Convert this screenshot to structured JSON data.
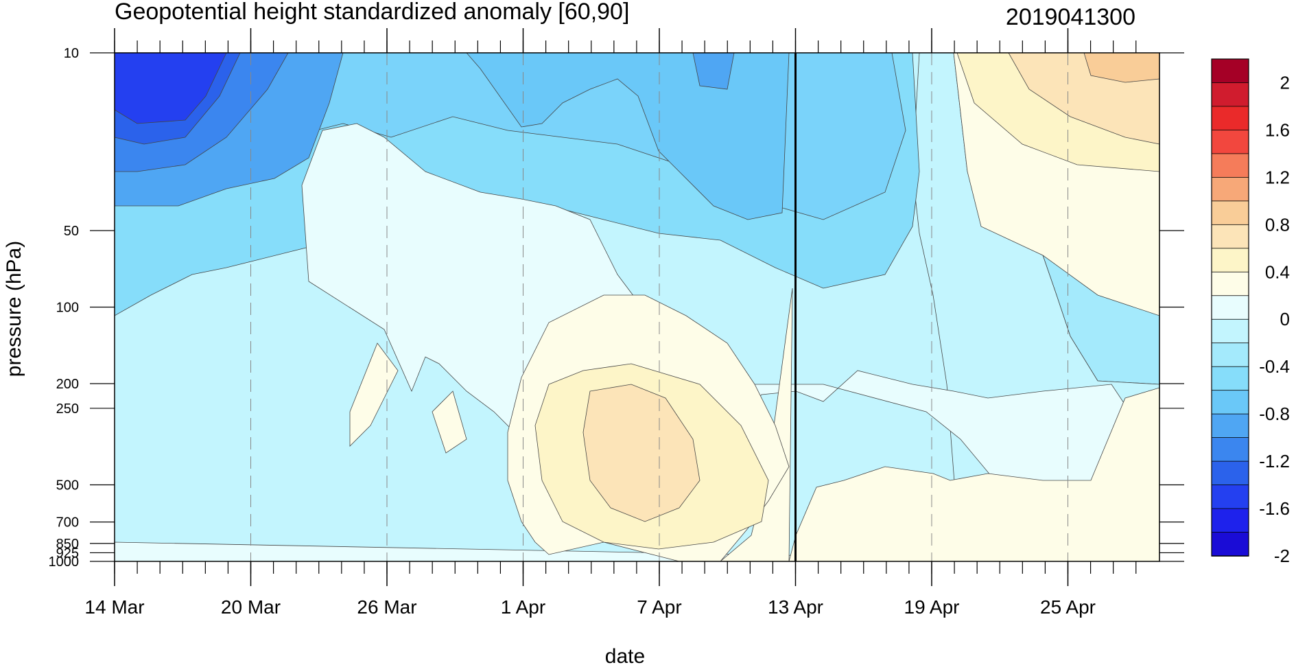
{
  "chart_data": {
    "type": "heatmap",
    "title": "Geopotential height standardized anomaly [60,90]",
    "right_title": "2019041300",
    "xlabel": "date",
    "ylabel": "pressure (hPa)",
    "y_scale": "log",
    "y_reversed": true,
    "x_start": "2019-03-14",
    "x_end": "2019-04-28",
    "x_ticks": [
      {
        "date": "2019-03-14",
        "label": "14 Mar"
      },
      {
        "date": "2019-03-20",
        "label": "20 Mar"
      },
      {
        "date": "2019-03-26",
        "label": "26 Mar"
      },
      {
        "date": "2019-04-01",
        "label": "1 Apr"
      },
      {
        "date": "2019-04-07",
        "label": "7 Apr"
      },
      {
        "date": "2019-04-13",
        "label": "13 Apr"
      },
      {
        "date": "2019-04-19",
        "label": "19 Apr"
      },
      {
        "date": "2019-04-25",
        "label": "25 Apr"
      }
    ],
    "y_ticks": [
      {
        "value": 10,
        "label": "10"
      },
      {
        "value": 50,
        "label": "50"
      },
      {
        "value": 100,
        "label": "100"
      },
      {
        "value": 200,
        "label": "200"
      },
      {
        "value": 250,
        "label": "250"
      },
      {
        "value": 500,
        "label": "500"
      },
      {
        "value": 700,
        "label": "700"
      },
      {
        "value": 850,
        "label": "850"
      },
      {
        "value": 925,
        "label": "925"
      },
      {
        "value": 1000,
        "label": "1000"
      }
    ],
    "vertical_line_date": "2019-04-13",
    "colorbar": {
      "labels": [
        "2",
        "1.6",
        "1.2",
        "0.8",
        "0.4",
        "0",
        "-0.4",
        "-0.8",
        "-1.2",
        "-1.6",
        "-2"
      ],
      "colors": [
        "#a50026",
        "#d01c2e",
        "#ea2a2a",
        "#f2473e",
        "#f57c5a",
        "#f7a878",
        "#f9cd98",
        "#fce4b8",
        "#fdf5c8",
        "#fefde8",
        "#e8fdfe",
        "#c3f5fe",
        "#a4eafc",
        "#86ddfa",
        "#6ac8f8",
        "#4fa6f3",
        "#3b86ef",
        "#2b62eb",
        "#2440f0",
        "#1e22ec",
        "#1a0cd6"
      ]
    },
    "contour_colors": {
      "-2.0": "#1e22ec",
      "-1.8": "#2440f0",
      "-1.6": "#2b62eb",
      "-1.4": "#3b86ef",
      "-1.2": "#4fa6f3",
      "-1.0": "#6ac8f8",
      "-0.8": "#7ad3fa",
      "-0.6": "#86ddfa",
      "-0.4": "#a4eafc",
      "-0.2": "#c3f5fe",
      "0.0": "#e8fdfe",
      "0.2": "#fefde8",
      "0.4": "#fdf5c8",
      "0.6": "#fce4b8",
      "0.8": "#f9cd98"
    }
  }
}
